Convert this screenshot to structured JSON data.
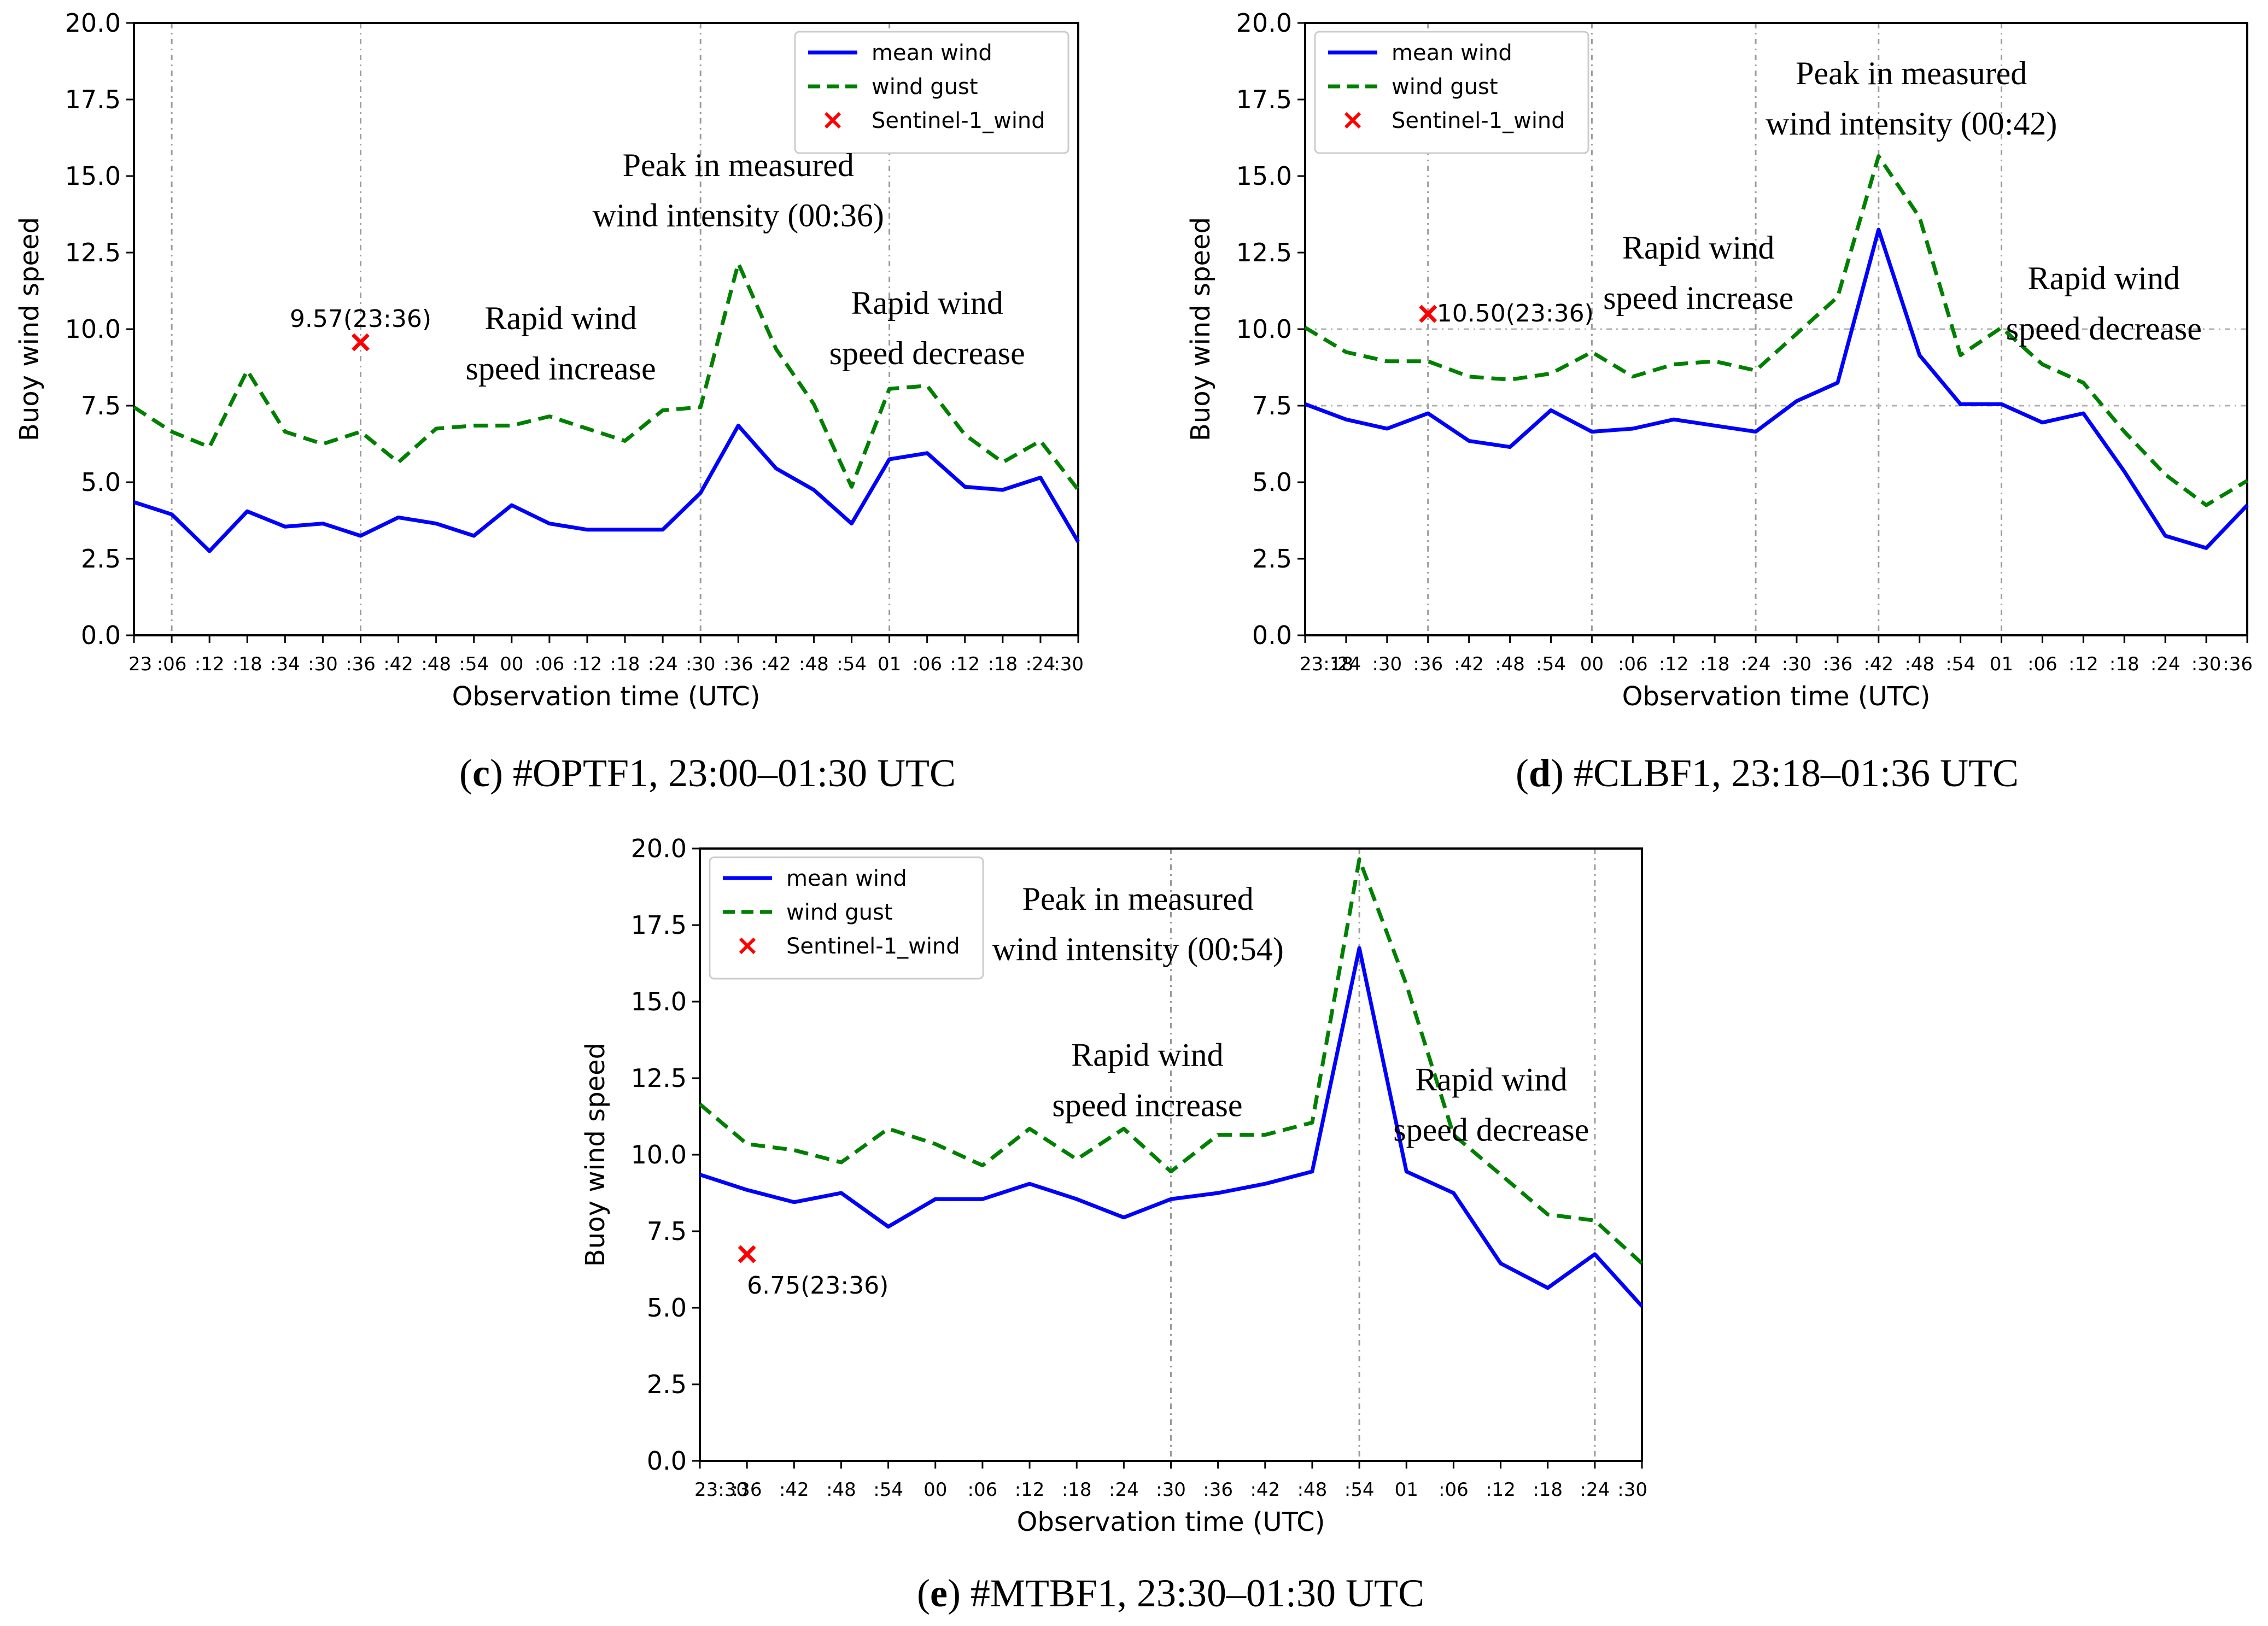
{
  "chart_data": [
    {
      "type": "line",
      "panel": "c",
      "caption_letter": "c",
      "caption_text": " #OPTF1, 23:00–01:30 UTC",
      "xlabel": "Observation time (UTC)",
      "ylabel": "Buoy wind speed",
      "ylim": [
        0,
        20
      ],
      "yticks": [
        "0.0",
        "2.5",
        "5.0",
        "7.5",
        "10.0",
        "12.5",
        "15.0",
        "17.5",
        "20.0"
      ],
      "categories": [
        "23",
        ":06",
        ":12",
        ":18",
        ":34",
        ":30",
        ":36",
        ":42",
        ":48",
        ":54",
        "00",
        ":06",
        ":12",
        ":18",
        ":24",
        ":30",
        ":36",
        ":42",
        ":48",
        ":54",
        "01",
        ":06",
        ":12",
        ":18",
        ":24",
        ":30"
      ],
      "grid_positions": [
        1,
        6,
        15,
        20
      ],
      "series": [
        {
          "name": "mean wind",
          "color": "#0000ff",
          "dash": "solid",
          "values": [
            4.35,
            3.95,
            2.75,
            4.05,
            3.55,
            3.65,
            3.25,
            3.85,
            3.65,
            3.25,
            4.25,
            3.65,
            3.45,
            3.45,
            3.45,
            4.65,
            6.85,
            5.45,
            4.75,
            3.65,
            5.75,
            5.95,
            4.85,
            4.75,
            5.15,
            3.05
          ]
        },
        {
          "name": "wind gust",
          "color": "#008000",
          "dash": "dashed",
          "values": [
            7.45,
            6.65,
            6.15,
            8.65,
            6.65,
            6.25,
            6.65,
            5.65,
            6.75,
            6.85,
            6.85,
            7.15,
            6.75,
            6.35,
            7.35,
            7.45,
            12.15,
            9.35,
            7.55,
            4.85,
            8.05,
            8.15,
            6.55,
            5.65,
            6.35,
            4.75
          ]
        }
      ],
      "scatter": {
        "name": "Sentinel-1_wind",
        "color": "#ff0000",
        "x": 6,
        "y": 9.57,
        "label": "9.57(23:36)"
      },
      "legend_position": "top-right",
      "annotations": [
        {
          "lines": [
            "Peak in measured",
            "wind intensity (00:36)"
          ],
          "x": 16,
          "y": 15.0
        },
        {
          "lines": [
            "Rapid wind",
            "speed increase"
          ],
          "x": 11.3,
          "y": 10.0
        },
        {
          "lines": [
            "Rapid wind",
            "speed decrease"
          ],
          "x": 21.0,
          "y": 10.5
        }
      ]
    },
    {
      "type": "line",
      "panel": "d",
      "caption_letter": "d",
      "caption_text": " #CLBF1, 23:18–01:36 UTC",
      "xlabel": "Observation time (UTC)",
      "ylabel": "Buoy wind speed",
      "ylim": [
        0,
        20
      ],
      "yticks": [
        "0.0",
        "2.5",
        "5.0",
        "7.5",
        "10.0",
        "12.5",
        "15.0",
        "17.5",
        "20.0"
      ],
      "categories": [
        "23:18",
        ":24",
        ":30",
        ":36",
        ":42",
        ":48",
        ":54",
        "00",
        ":06",
        ":12",
        ":18",
        ":24",
        ":30",
        ":36",
        ":42",
        ":48",
        ":54",
        "01",
        ":06",
        ":12",
        ":18",
        ":24",
        ":30",
        ":36"
      ],
      "grid_positions": [
        3,
        7,
        11,
        14,
        17
      ],
      "hgrid": [
        7.5,
        10.0
      ],
      "series": [
        {
          "name": "mean wind",
          "color": "#0000ff",
          "dash": "solid",
          "values": [
            7.55,
            7.05,
            6.75,
            7.25,
            6.35,
            6.15,
            7.35,
            6.65,
            6.75,
            7.05,
            6.85,
            6.65,
            7.65,
            8.25,
            13.25,
            9.15,
            7.55,
            7.55,
            6.95,
            7.25,
            5.35,
            3.25,
            2.85,
            4.25
          ]
        },
        {
          "name": "wind gust",
          "color": "#008000",
          "dash": "dashed",
          "values": [
            10.05,
            9.25,
            8.95,
            8.95,
            8.45,
            8.35,
            8.55,
            9.25,
            8.45,
            8.85,
            8.95,
            8.65,
            9.85,
            11.05,
            15.65,
            13.65,
            9.15,
            10.05,
            8.85,
            8.25,
            6.65,
            5.25,
            4.25,
            5.05
          ]
        }
      ],
      "scatter": {
        "name": "Sentinel-1_wind",
        "color": "#ff0000",
        "x": 3,
        "y": 10.5,
        "label": "10.50(23:36)"
      },
      "legend_position": "top-left",
      "annotations": [
        {
          "lines": [
            "Peak in measured",
            "wind intensity (00:42)"
          ],
          "x": 14.8,
          "y": 18.0
        },
        {
          "lines": [
            "Rapid wind",
            "speed increase"
          ],
          "x": 9.6,
          "y": 12.3
        },
        {
          "lines": [
            "Rapid wind",
            "speed decrease"
          ],
          "x": 19.5,
          "y": 11.3
        }
      ]
    },
    {
      "type": "line",
      "panel": "e",
      "caption_letter": "e",
      "caption_text": " #MTBF1, 23:30–01:30 UTC",
      "xlabel": "Observation time (UTC)",
      "ylabel": "Buoy wind speed",
      "ylim": [
        0,
        20
      ],
      "yticks": [
        "0.0",
        "2.5",
        "5.0",
        "7.5",
        "10.0",
        "12.5",
        "15.0",
        "17.5",
        "20.0"
      ],
      "categories": [
        "23:30",
        ":36",
        ":42",
        ":48",
        ":54",
        "00",
        ":06",
        ":12",
        ":18",
        ":24",
        ":30",
        ":36",
        ":42",
        ":48",
        ":54",
        "01",
        ":06",
        ":12",
        ":18",
        ":24",
        ":30"
      ],
      "grid_positions": [
        10,
        14,
        19
      ],
      "series": [
        {
          "name": "mean wind",
          "color": "#0000ff",
          "dash": "solid",
          "values": [
            9.35,
            8.85,
            8.45,
            8.75,
            7.65,
            8.55,
            8.55,
            9.05,
            8.55,
            7.95,
            8.55,
            8.75,
            9.05,
            9.45,
            16.75,
            9.45,
            8.75,
            6.45,
            5.65,
            6.75,
            5.05
          ]
        },
        {
          "name": "wind gust",
          "color": "#008000",
          "dash": "dashed",
          "values": [
            11.65,
            10.35,
            10.15,
            9.75,
            10.85,
            10.35,
            9.65,
            10.85,
            9.85,
            10.85,
            9.45,
            10.65,
            10.65,
            11.05,
            19.65,
            15.55,
            10.65,
            9.35,
            8.05,
            7.85,
            6.45
          ]
        }
      ],
      "scatter": {
        "name": "Sentinel-1_wind",
        "color": "#ff0000",
        "x": 1,
        "y": 6.75,
        "label": "6.75(23:36)"
      },
      "legend_position": "top-left",
      "annotations": [
        {
          "lines": [
            "Peak in measured",
            "wind intensity (00:54)"
          ],
          "x": 9.3,
          "y": 18.0
        },
        {
          "lines": [
            "Rapid wind",
            "speed increase"
          ],
          "x": 9.5,
          "y": 12.9
        },
        {
          "lines": [
            "Rapid wind",
            "speed decrease"
          ],
          "x": 16.8,
          "y": 12.1
        }
      ]
    }
  ]
}
